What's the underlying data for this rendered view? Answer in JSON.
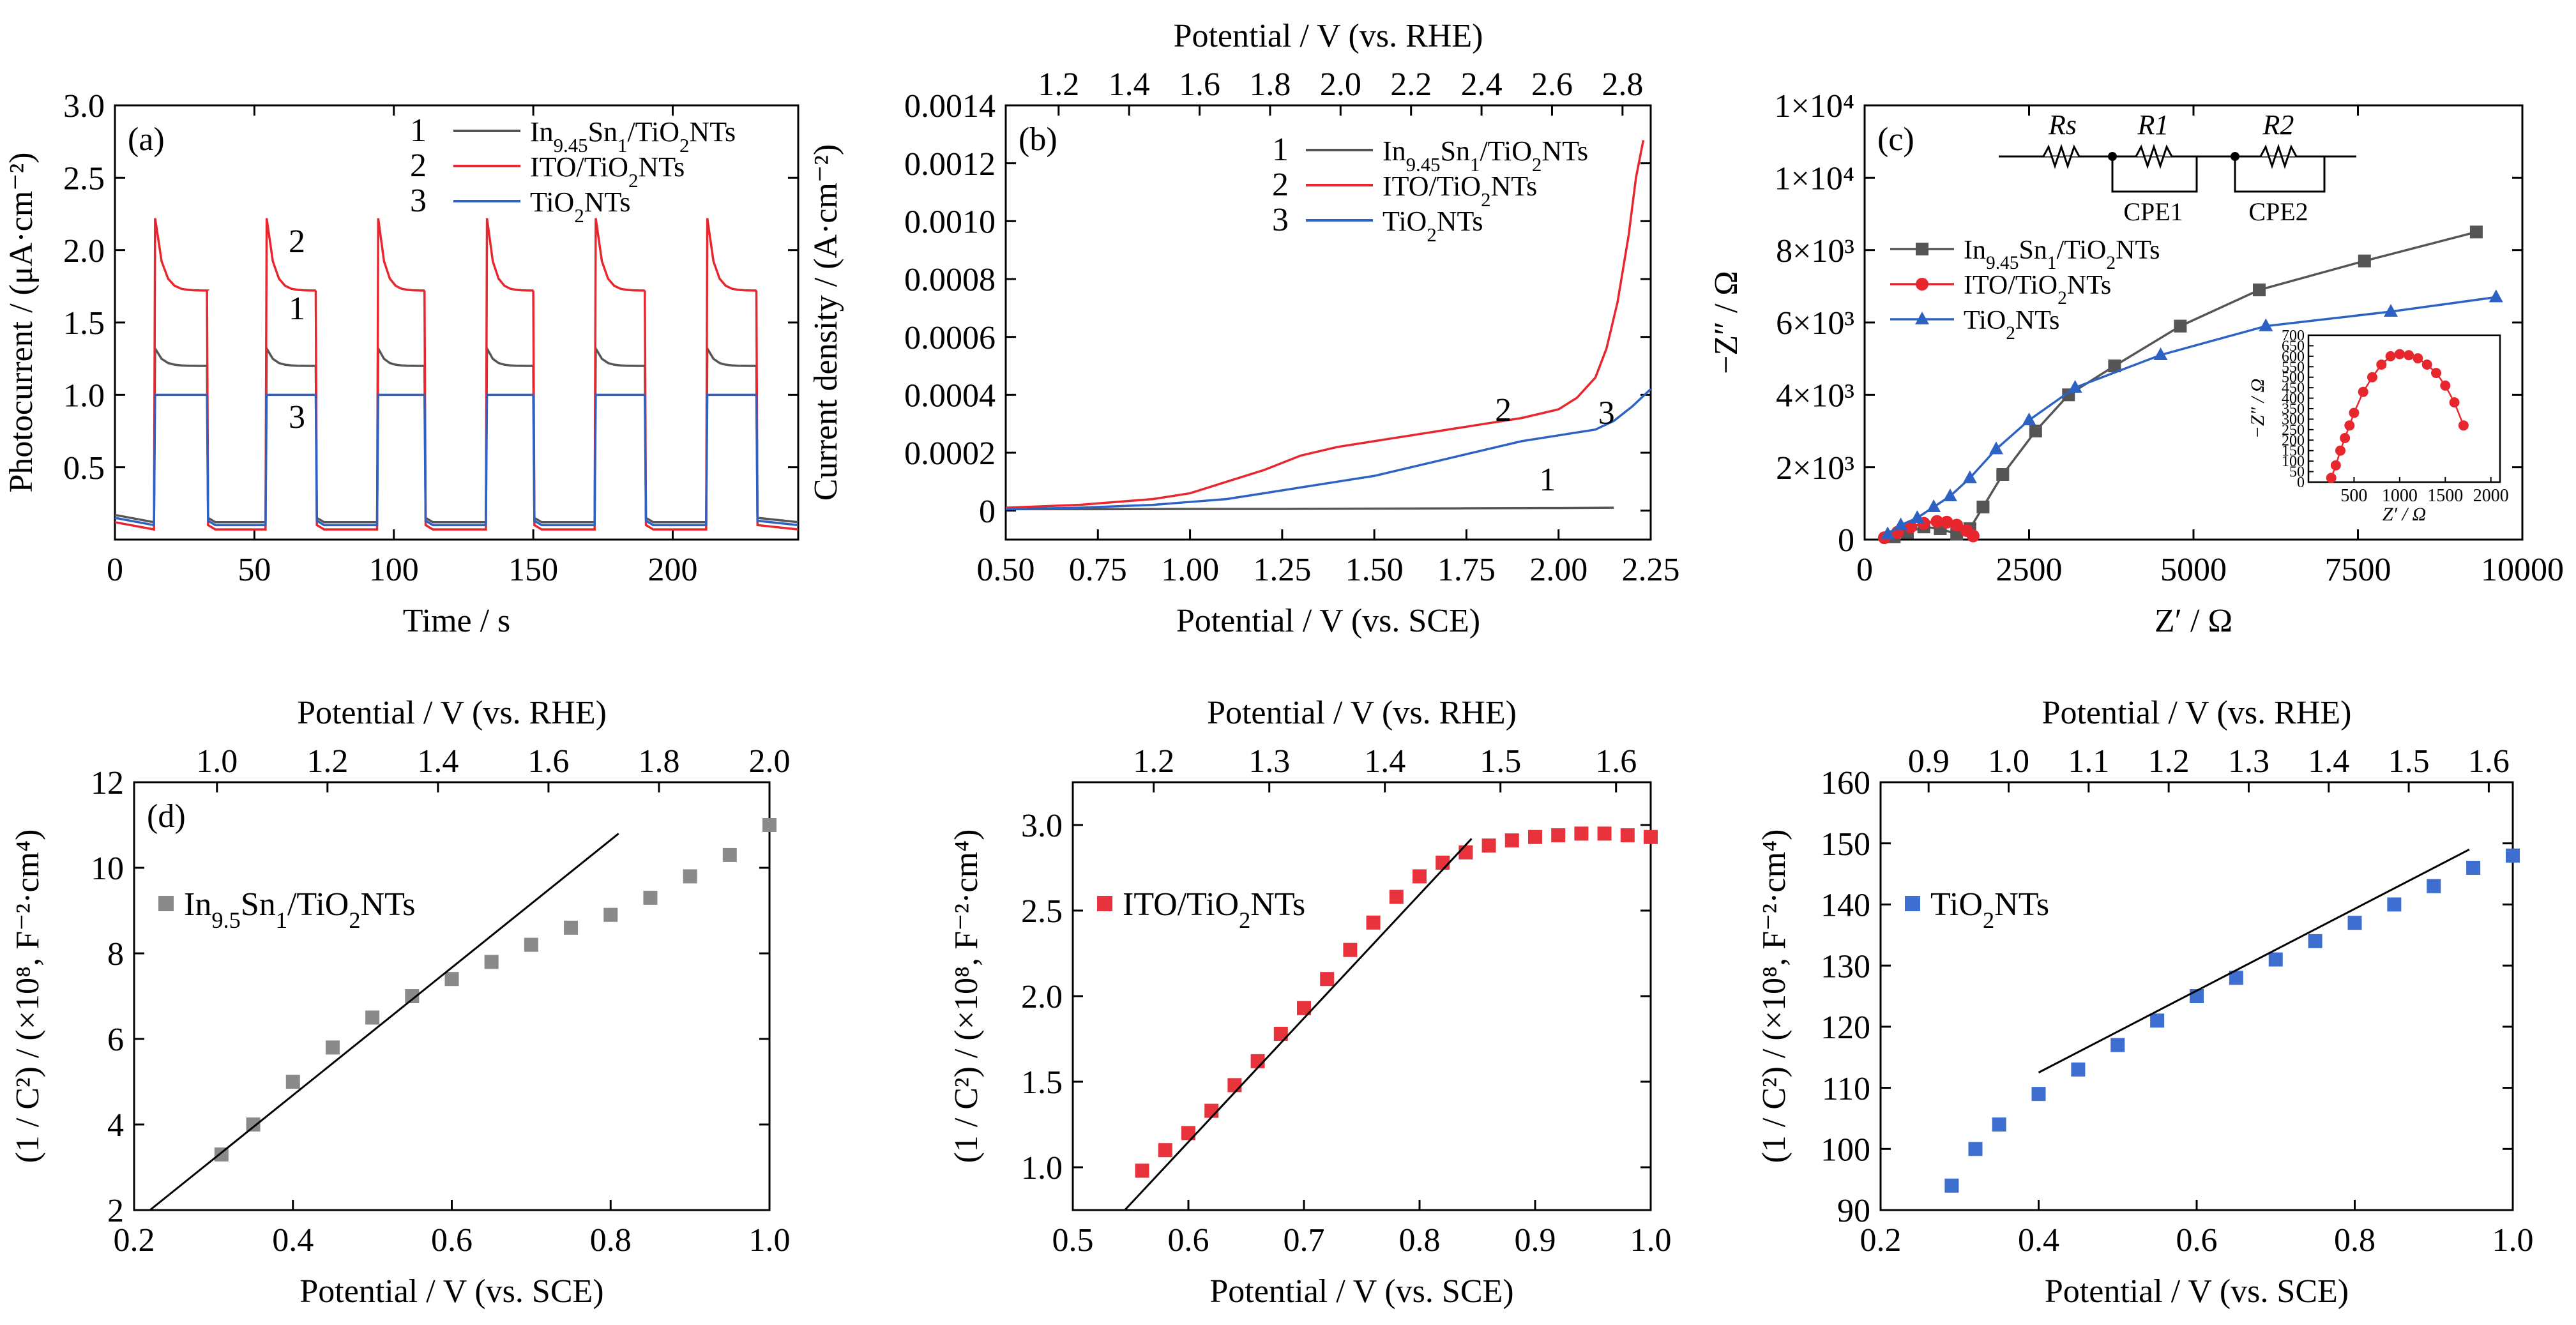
{
  "chart_data": [
    {
      "id": "a",
      "type": "line",
      "panel_label": "(a)",
      "xlabel": "Time / s",
      "ylabel": "Photocurrent / (μA·cm⁻²)",
      "xlim": [
        0,
        245
      ],
      "ylim": [
        0,
        3.0
      ],
      "xticks": [
        0,
        50,
        100,
        150,
        200
      ],
      "xtick_labels": [
        "0",
        "50",
        "100",
        "150",
        "200"
      ],
      "yticks": [
        0.5,
        1.0,
        1.5,
        2.0,
        2.5,
        3.0
      ],
      "ytick_labels": [
        "0.5",
        "1.0",
        "1.5",
        "2.0",
        "2.5",
        "3.0"
      ],
      "light_on": [
        [
          14,
          33
        ],
        [
          54,
          72
        ],
        [
          94,
          111
        ],
        [
          133,
          150
        ],
        [
          172,
          190
        ],
        [
          212,
          230
        ]
      ],
      "series": [
        {
          "name": "In9.45Sn1/TiO2NTs",
          "num": "1",
          "color": "#555555",
          "dark": 0.12,
          "peak": 1.32,
          "plateau": 1.2,
          "marker": "1"
        },
        {
          "name": "ITO/TiO2NTs",
          "num": "2",
          "color": "#e8262d",
          "dark": 0.07,
          "peak": 2.22,
          "plateau": 1.72,
          "marker": "2"
        },
        {
          "name": "TiO2NTs",
          "num": "3",
          "color": "#2d62c4",
          "dark": 0.1,
          "peak": 1.0,
          "plateau": 1.0,
          "marker": "3"
        }
      ],
      "legend_position": "top-right"
    },
    {
      "id": "b",
      "type": "line",
      "panel_label": "(b)",
      "xlabel": "Potential  / V (vs. SCE)",
      "x2label": "Potential  / V (vs. RHE)",
      "ylabel": "Current density / (A·cm⁻²)",
      "xlim": [
        0.5,
        2.25
      ],
      "ylim": [
        -0.0001,
        0.0014
      ],
      "x2lim": [
        1.05,
        2.88
      ],
      "xticks": [
        0.5,
        0.75,
        1.0,
        1.25,
        1.5,
        1.75,
        2.0,
        2.25
      ],
      "xtick_labels": [
        "0.50",
        "0.75",
        "1.00",
        "1.25",
        "1.50",
        "1.75",
        "2.00",
        "2.25"
      ],
      "x2ticks": [
        1.2,
        1.4,
        1.6,
        1.8,
        2.0,
        2.2,
        2.4,
        2.6,
        2.8
      ],
      "x2tick_labels": [
        "1.2",
        "1.4",
        "1.6",
        "1.8",
        "2.0",
        "2.2",
        "2.4",
        "2.6",
        "2.8"
      ],
      "yticks": [
        0,
        0.0002,
        0.0004,
        0.0006,
        0.0008,
        0.001,
        0.0012,
        0.0014
      ],
      "ytick_labels": [
        "0",
        "0.0002",
        "0.0004",
        "0.0006",
        "0.0008",
        "0.0010",
        "0.0012",
        "0.0014"
      ],
      "series": [
        {
          "name": "In9.45Sn1/TiO2NTs",
          "num": "1",
          "color": "#555555",
          "x": [
            0.5,
            0.75,
            1.0,
            1.25,
            1.5,
            1.75,
            2.0,
            2.15
          ],
          "y": [
            5e-06,
            5e-06,
            6e-06,
            6e-06,
            7e-06,
            8e-06,
            9e-06,
            1e-05
          ]
        },
        {
          "name": "ITO/TiO2NTs",
          "num": "2",
          "color": "#e8262d",
          "x": [
            0.5,
            0.7,
            0.9,
            1.0,
            1.1,
            1.2,
            1.3,
            1.4,
            1.5,
            1.6,
            1.7,
            1.8,
            1.9,
            2.0,
            2.05,
            2.1,
            2.13,
            2.16,
            2.19,
            2.21,
            2.23
          ],
          "y": [
            1e-05,
            2e-05,
            4e-05,
            6e-05,
            0.0001,
            0.00014,
            0.00019,
            0.00022,
            0.00024,
            0.00026,
            0.00028,
            0.0003,
            0.00032,
            0.00035,
            0.00039,
            0.00046,
            0.00056,
            0.00072,
            0.00095,
            0.00115,
            0.00128
          ]
        },
        {
          "name": "TiO2NTs",
          "num": "3",
          "color": "#2d62c4",
          "x": [
            0.5,
            0.7,
            0.9,
            1.0,
            1.1,
            1.2,
            1.3,
            1.4,
            1.5,
            1.6,
            1.7,
            1.8,
            1.9,
            2.0,
            2.1,
            2.15,
            2.2,
            2.25
          ],
          "y": [
            5e-06,
            1e-05,
            2e-05,
            3e-05,
            4e-05,
            6e-05,
            8e-05,
            0.0001,
            0.00012,
            0.00015,
            0.00018,
            0.00021,
            0.00024,
            0.00026,
            0.00028,
            0.00031,
            0.00036,
            0.00042
          ]
        }
      ],
      "curve_labels": [
        {
          "text": "1",
          "x": 1.97,
          "y": 7e-05
        },
        {
          "text": "2",
          "x": 1.85,
          "y": 0.00031
        },
        {
          "text": "3",
          "x": 2.13,
          "y": 0.0003
        }
      ],
      "legend_position": "top-right"
    },
    {
      "id": "c",
      "type": "scatter",
      "panel_label": "(c)",
      "xlabel": "Z′ / Ω",
      "ylabel": "−Z″ / Ω",
      "xlim": [
        0,
        10000
      ],
      "ylim": [
        0,
        12000
      ],
      "xticks": [
        0,
        2500,
        5000,
        7500,
        10000
      ],
      "xtick_labels": [
        "0",
        "2500",
        "5000",
        "7500",
        "10000"
      ],
      "yticks": [
        0,
        2000,
        4000,
        6000,
        8000,
        10000,
        12000
      ],
      "ytick_labels": [
        "0",
        "2×10³",
        "4×10³",
        "6×10³",
        "8×10³",
        "1×10⁴",
        "1×10⁴"
      ],
      "circuit_labels": [
        "Rs",
        "R1",
        "R2",
        "CPE1",
        "CPE2"
      ],
      "series": [
        {
          "name": "In9.45Sn1/TiO2NTs",
          "color": "#555555",
          "marker": "square",
          "x": [
            450,
            650,
            900,
            1150,
            1400,
            1600,
            1800,
            2100,
            2600,
            3100,
            3800,
            4800,
            6000,
            7600,
            9300
          ],
          "y": [
            80,
            200,
            350,
            300,
            150,
            300,
            900,
            1800,
            3000,
            4000,
            4800,
            5900,
            6900,
            7700,
            8500
          ]
        },
        {
          "name": "ITO/TiO2NTs",
          "color": "#e8262d",
          "marker": "circle",
          "x": [
            300,
            500,
            700,
            900,
            1100,
            1250,
            1400,
            1550,
            1650
          ],
          "y": [
            50,
            200,
            350,
            450,
            500,
            480,
            400,
            250,
            100
          ]
        },
        {
          "name": "TiO2NTs",
          "color": "#2d62c4",
          "marker": "triangle",
          "x": [
            350,
            550,
            800,
            1050,
            1300,
            1600,
            2000,
            2500,
            3200,
            4500,
            6100,
            8000,
            9600
          ],
          "y": [
            150,
            400,
            600,
            900,
            1200,
            1700,
            2500,
            3300,
            4200,
            5100,
            5900,
            6300,
            6700
          ]
        }
      ],
      "inset": {
        "xlabel": "Z′ / Ω",
        "ylabel": "−Z″ / Ω",
        "xlim": [
          0,
          2100
        ],
        "ylim": [
          0,
          700
        ],
        "xticks": [
          500,
          1000,
          1500,
          2000
        ],
        "xtick_labels": [
          "500",
          "1000",
          "1500",
          "2000"
        ],
        "yticks": [
          0,
          50,
          100,
          150,
          200,
          250,
          300,
          350,
          400,
          450,
          500,
          550,
          600,
          650,
          700
        ],
        "ytick_labels": [
          "0",
          "50",
          "100",
          "150",
          "200",
          "250",
          "300",
          "350",
          "400",
          "450",
          "500",
          "550",
          "600",
          "650",
          "700"
        ],
        "x": [
          250,
          300,
          350,
          400,
          450,
          500,
          600,
          700,
          800,
          900,
          1000,
          1100,
          1200,
          1300,
          1400,
          1500,
          1600,
          1700
        ],
        "y": [
          20,
          80,
          150,
          210,
          270,
          330,
          430,
          500,
          560,
          600,
          610,
          605,
          590,
          560,
          520,
          460,
          380,
          270
        ]
      },
      "legend_position": "top-left"
    },
    {
      "id": "d1",
      "type": "scatter",
      "panel_label": "(d)",
      "legend": "In9.5Sn1/TiO2NTs",
      "color": "#8a8a8a",
      "xlabel": "Potential  / V (vs. SCE)",
      "x2label": "Potential  / V (vs. RHE)",
      "ylabel": "(1 / C²) / (×10⁸, F⁻²·cm⁴)",
      "xlim": [
        0.2,
        1.0
      ],
      "ylim": [
        2,
        12
      ],
      "x2lim": [
        0.85,
        2.0
      ],
      "xticks": [
        0.2,
        0.4,
        0.6,
        0.8,
        1.0
      ],
      "xtick_labels": [
        "0.2",
        "0.4",
        "0.6",
        "0.8",
        "1.0"
      ],
      "x2ticks": [
        1.0,
        1.2,
        1.4,
        1.6,
        1.8,
        2.0
      ],
      "x2tick_labels": [
        "1.0",
        "1.2",
        "1.4",
        "1.6",
        "1.8",
        "2.0"
      ],
      "yticks": [
        2,
        4,
        6,
        8,
        10,
        12
      ],
      "ytick_labels": [
        "2",
        "4",
        "6",
        "8",
        "10",
        "12"
      ],
      "x": [
        0.31,
        0.35,
        0.4,
        0.45,
        0.5,
        0.55,
        0.6,
        0.65,
        0.7,
        0.75,
        0.8,
        0.85,
        0.9,
        0.95,
        1.0
      ],
      "y": [
        3.3,
        4.0,
        5.0,
        5.8,
        6.5,
        7.0,
        7.4,
        7.8,
        8.2,
        8.6,
        8.9,
        9.3,
        9.8,
        10.3,
        11.0
      ],
      "fit_line": {
        "x": [
          0.22,
          0.81
        ],
        "y": [
          2.0,
          10.8
        ]
      }
    },
    {
      "id": "d2",
      "type": "scatter",
      "legend": "ITO/TiO2NTs",
      "color": "#e8323c",
      "xlabel": "Potential  / V (vs. SCE)",
      "x2label": "Potential  / V (vs. RHE)",
      "ylabel": "(1 / C²) / (×10⁸, F⁻²·cm⁴)",
      "xlim": [
        0.5,
        1.0
      ],
      "ylim": [
        0.75,
        3.25
      ],
      "x2lim": [
        1.13,
        1.63
      ],
      "xticks": [
        0.5,
        0.6,
        0.7,
        0.8,
        0.9,
        1.0
      ],
      "xtick_labels": [
        "0.5",
        "0.6",
        "0.7",
        "0.8",
        "0.9",
        "1.0"
      ],
      "x2ticks": [
        1.2,
        1.3,
        1.4,
        1.5,
        1.6
      ],
      "x2tick_labels": [
        "1.2",
        "1.3",
        "1.4",
        "1.5",
        "1.6"
      ],
      "yticks": [
        1.0,
        1.5,
        2.0,
        2.5,
        3.0
      ],
      "ytick_labels": [
        "1.0",
        "1.5",
        "2.0",
        "2.5",
        "3.0"
      ],
      "x": [
        0.56,
        0.58,
        0.6,
        0.62,
        0.64,
        0.66,
        0.68,
        0.7,
        0.72,
        0.74,
        0.76,
        0.78,
        0.8,
        0.82,
        0.84,
        0.86,
        0.88,
        0.9,
        0.92,
        0.94,
        0.96,
        0.98,
        1.0
      ],
      "y": [
        0.98,
        1.1,
        1.2,
        1.33,
        1.48,
        1.62,
        1.78,
        1.93,
        2.1,
        2.27,
        2.43,
        2.58,
        2.7,
        2.78,
        2.84,
        2.88,
        2.91,
        2.93,
        2.94,
        2.95,
        2.95,
        2.94,
        2.93
      ],
      "fit_line": {
        "x": [
          0.545,
          0.845
        ],
        "y": [
          0.75,
          2.92
        ]
      }
    },
    {
      "id": "d3",
      "type": "scatter",
      "legend": "TiO2NTs",
      "color": "#3e6fd0",
      "xlabel": "Potential  / V (vs. SCE)",
      "x2label": "Potential  / V (vs. RHE)",
      "ylabel": "(1 / C²) / (×10⁸, F⁻²·cm⁴)",
      "xlim": [
        0.2,
        1.0
      ],
      "ylim": [
        90,
        160
      ],
      "x2lim": [
        0.84,
        1.63
      ],
      "xticks": [
        0.2,
        0.4,
        0.6,
        0.8,
        1.0
      ],
      "xtick_labels": [
        "0.2",
        "0.4",
        "0.6",
        "0.8",
        "1.0"
      ],
      "x2ticks": [
        0.9,
        1.0,
        1.1,
        1.2,
        1.3,
        1.4,
        1.5,
        1.6
      ],
      "x2tick_labels": [
        "0.9",
        "1.0",
        "1.1",
        "1.2",
        "1.3",
        "1.4",
        "1.5",
        "1.6"
      ],
      "yticks": [
        90,
        100,
        110,
        120,
        130,
        140,
        150,
        160
      ],
      "ytick_labels": [
        "90",
        "100",
        "110",
        "120",
        "130",
        "140",
        "150",
        "160"
      ],
      "x": [
        0.29,
        0.32,
        0.35,
        0.4,
        0.45,
        0.5,
        0.55,
        0.6,
        0.65,
        0.7,
        0.75,
        0.8,
        0.85,
        0.9,
        0.95,
        1.0
      ],
      "y": [
        94,
        100,
        104,
        109,
        113,
        117,
        121,
        125,
        128,
        131,
        134,
        137,
        140,
        143,
        146,
        148
      ],
      "fit_line": {
        "x": [
          0.4,
          0.945
        ],
        "y": [
          112.5,
          149
        ]
      }
    }
  ]
}
